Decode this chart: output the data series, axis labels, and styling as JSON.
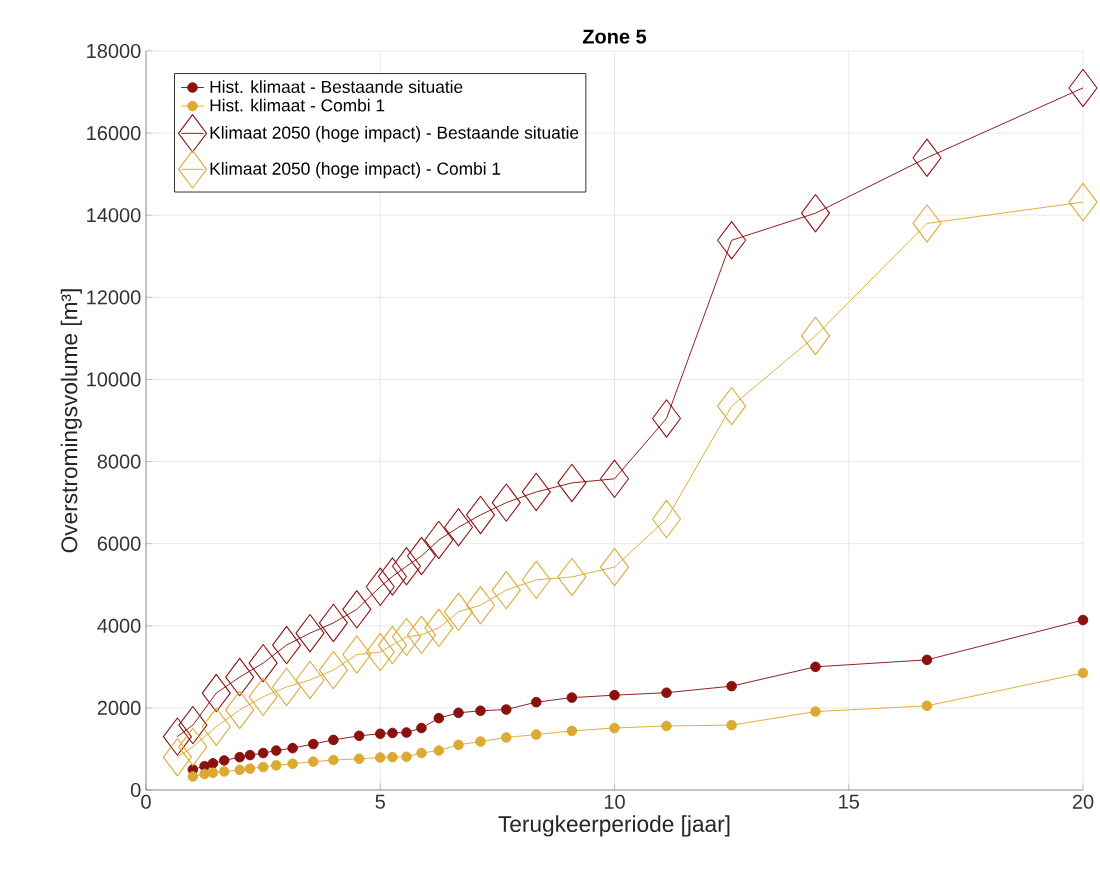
{
  "chart_data": {
    "type": "line",
    "title": "Zone 5",
    "xlabel": "Terugkeerperiode [jaar]",
    "ylabel": "Overstromingsvolume [m³]",
    "xlim": [
      0,
      20
    ],
    "ylim": [
      0,
      18000
    ],
    "xticks": [
      0,
      5,
      10,
      15,
      20
    ],
    "yticks": [
      0,
      2000,
      4000,
      6000,
      8000,
      10000,
      12000,
      14000,
      16000,
      18000
    ],
    "grid": true,
    "legend": "top left",
    "line_style": "solid",
    "series": [
      {
        "name": "Hist. klimaat - Bestaande situatie",
        "color": "#8b1010",
        "marker": "circle",
        "x": [
          20,
          16.67,
          14.29,
          12.5,
          11.11,
          10,
          9.09,
          8.33,
          7.69,
          7.14,
          6.67,
          6.25,
          5.88,
          5.56,
          5.26,
          5,
          4.55,
          4,
          3.57,
          3.13,
          2.78,
          2.5,
          2.22,
          2,
          1.67,
          1.43,
          1.25,
          1
        ],
        "values": [
          4140,
          3170,
          3000,
          2530,
          2370,
          2310,
          2250,
          2140,
          1960,
          1930,
          1880,
          1750,
          1510,
          1400,
          1390,
          1370,
          1320,
          1220,
          1120,
          1020,
          960,
          900,
          850,
          800,
          720,
          650,
          580,
          500
        ]
      },
      {
        "name": "Hist. klimaat - Combi 1",
        "color": "#dcaa32",
        "marker": "circle",
        "x": [
          20,
          16.67,
          14.29,
          12.5,
          11.11,
          10,
          9.09,
          8.33,
          7.69,
          7.14,
          6.67,
          6.25,
          5.88,
          5.56,
          5.26,
          5,
          4.55,
          4,
          3.57,
          3.13,
          2.78,
          2.5,
          2.22,
          2,
          1.67,
          1.43,
          1.25,
          1
        ],
        "values": [
          2850,
          2050,
          1910,
          1580,
          1560,
          1510,
          1440,
          1350,
          1280,
          1180,
          1100,
          960,
          900,
          810,
          800,
          790,
          760,
          730,
          690,
          640,
          600,
          560,
          520,
          490,
          450,
          420,
          390,
          330
        ]
      },
      {
        "name": "Klimaat 2050 (hoge impact) - Bestaande situatie",
        "color": "#8b1010",
        "marker": "diamond",
        "x": [
          20,
          16.67,
          14.29,
          12.5,
          11.11,
          10,
          9.09,
          8.33,
          7.69,
          7.14,
          6.67,
          6.25,
          5.88,
          5.56,
          5.26,
          5,
          4.5,
          4,
          3.5,
          3,
          2.5,
          2,
          1.5,
          1,
          0.67
        ],
        "values": [
          17100,
          15400,
          14050,
          13390,
          9050,
          7580,
          7480,
          7260,
          7000,
          6700,
          6400,
          6090,
          5700,
          5450,
          5200,
          4950,
          4400,
          4070,
          3820,
          3530,
          3090,
          2750,
          2360,
          1580,
          1300
        ]
      },
      {
        "name": "Klimaat 2050 (hoge impact) - Combi 1",
        "color": "#dcaa32",
        "marker": "diamond",
        "x": [
          20,
          16.67,
          14.29,
          12.5,
          11.11,
          10,
          9.09,
          8.33,
          7.69,
          7.14,
          6.67,
          6.25,
          5.88,
          5.56,
          5.26,
          5,
          4.5,
          4,
          3.5,
          3,
          2.5,
          2,
          1.5,
          1,
          0.67
        ],
        "values": [
          14320,
          13800,
          11060,
          9350,
          6600,
          5430,
          5190,
          5120,
          4870,
          4500,
          4340,
          3950,
          3780,
          3730,
          3530,
          3360,
          3300,
          2920,
          2680,
          2510,
          2270,
          1950,
          1540,
          1050,
          800
        ]
      }
    ]
  }
}
